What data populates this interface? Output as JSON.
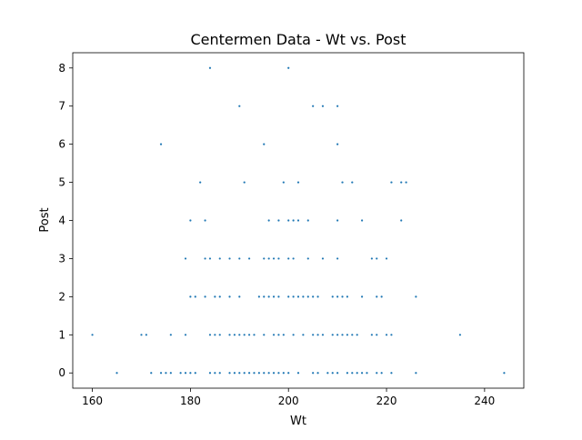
{
  "chart_data": {
    "type": "scatter",
    "title": "Centermen Data - Wt vs. Post",
    "xlabel": "Wt",
    "ylabel": "Post",
    "xlim": [
      156,
      248
    ],
    "ylim": [
      -0.4,
      8.4
    ],
    "xticks": [
      160,
      180,
      200,
      220,
      240
    ],
    "yticks": [
      0,
      1,
      2,
      3,
      4,
      5,
      6,
      7,
      8
    ],
    "grid": false,
    "legend": "none",
    "color": "#1f77b4",
    "series": [
      {
        "x": [
          165,
          172,
          174,
          175,
          176,
          178,
          179,
          180,
          181,
          184,
          185,
          186,
          188,
          189,
          190,
          191,
          192,
          193,
          194,
          195,
          196,
          197,
          198,
          199,
          200,
          202,
          205,
          206,
          208,
          209,
          210,
          212,
          213,
          214,
          215,
          216,
          218,
          219,
          221,
          226,
          244,
          160,
          170,
          171,
          176,
          179,
          184,
          185,
          186,
          188,
          189,
          190,
          191,
          192,
          193,
          195,
          197,
          198,
          199,
          201,
          203,
          205,
          206,
          207,
          209,
          210,
          211,
          212,
          213,
          214,
          217,
          218,
          220,
          221,
          235,
          180,
          181,
          183,
          185,
          186,
          188,
          190,
          194,
          195,
          196,
          197,
          198,
          200,
          201,
          202,
          203,
          204,
          205,
          206,
          209,
          210,
          211,
          212,
          215,
          218,
          219,
          226,
          179,
          183,
          184,
          186,
          188,
          190,
          192,
          195,
          196,
          197,
          198,
          200,
          201,
          204,
          207,
          210,
          217,
          218,
          220,
          180,
          183,
          196,
          198,
          200,
          201,
          202,
          204,
          210,
          215,
          223,
          182,
          191,
          199,
          202,
          211,
          213,
          221,
          223,
          224,
          174,
          195,
          210,
          190,
          205,
          207,
          210,
          184,
          200
        ],
        "y": [
          0,
          0,
          0,
          0,
          0,
          0,
          0,
          0,
          0,
          0,
          0,
          0,
          0,
          0,
          0,
          0,
          0,
          0,
          0,
          0,
          0,
          0,
          0,
          0,
          0,
          0,
          0,
          0,
          0,
          0,
          0,
          0,
          0,
          0,
          0,
          0,
          0,
          0,
          0,
          0,
          0,
          1,
          1,
          1,
          1,
          1,
          1,
          1,
          1,
          1,
          1,
          1,
          1,
          1,
          1,
          1,
          1,
          1,
          1,
          1,
          1,
          1,
          1,
          1,
          1,
          1,
          1,
          1,
          1,
          1,
          1,
          1,
          1,
          1,
          1,
          2,
          2,
          2,
          2,
          2,
          2,
          2,
          2,
          2,
          2,
          2,
          2,
          2,
          2,
          2,
          2,
          2,
          2,
          2,
          2,
          2,
          2,
          2,
          2,
          2,
          2,
          2,
          3,
          3,
          3,
          3,
          3,
          3,
          3,
          3,
          3,
          3,
          3,
          3,
          3,
          3,
          3,
          3,
          3,
          3,
          3,
          4,
          4,
          4,
          4,
          4,
          4,
          4,
          4,
          4,
          4,
          4,
          5,
          5,
          5,
          5,
          5,
          5,
          5,
          5,
          5,
          6,
          6,
          6,
          7,
          7,
          7,
          7,
          8,
          8
        ]
      }
    ]
  }
}
